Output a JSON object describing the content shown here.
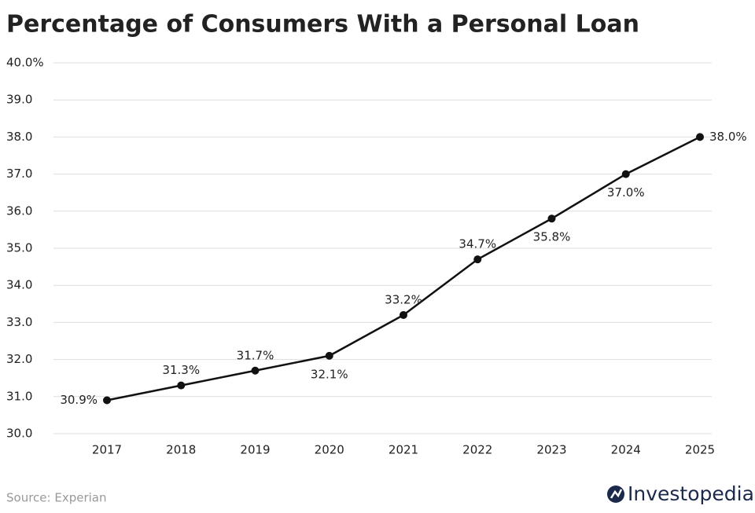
{
  "chart_data": {
    "type": "line",
    "title": "Percentage of Consumers With a Personal Loan",
    "categories": [
      "2017",
      "2018",
      "2019",
      "2020",
      "2021",
      "2022",
      "2023",
      "2024",
      "2025"
    ],
    "values": [
      30.9,
      31.3,
      31.7,
      32.1,
      33.2,
      34.7,
      35.8,
      37.0,
      38.0
    ],
    "value_labels": [
      "30.9%",
      "31.3%",
      "31.7%",
      "32.1%",
      "33.2%",
      "34.7%",
      "35.8%",
      "37.0%",
      "38.0%"
    ],
    "color": "#111111",
    "ylim": [
      30,
      40
    ],
    "yticks": [
      {
        "value": 30,
        "label": "30.0"
      },
      {
        "value": 31,
        "label": "31.0"
      },
      {
        "value": 32,
        "label": "32.0"
      },
      {
        "value": 33,
        "label": "33.0"
      },
      {
        "value": 34,
        "label": "34.0"
      },
      {
        "value": 35,
        "label": "35.0"
      },
      {
        "value": 36,
        "label": "36.0"
      },
      {
        "value": 37,
        "label": "37.0"
      },
      {
        "value": 38,
        "label": "38.0"
      },
      {
        "value": 39,
        "label": "39.0"
      },
      {
        "value": 40,
        "label": "40.0%"
      }
    ],
    "grid": true,
    "source": "Source: Experian",
    "logo": "Investopedia"
  }
}
